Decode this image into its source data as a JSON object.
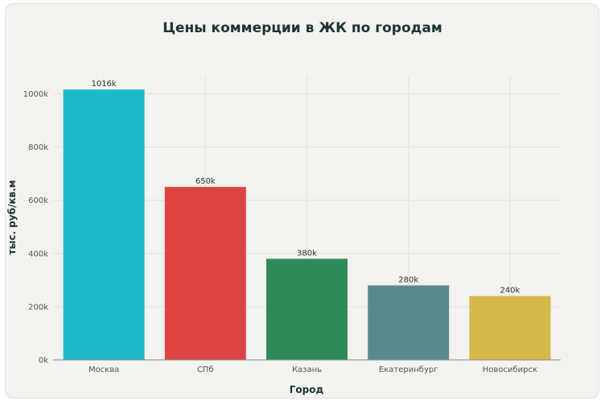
{
  "chart_data": {
    "type": "bar",
    "title": "Цены коммерции в ЖК по городам",
    "xlabel": "Город",
    "ylabel": "тыс. руб/кв.м",
    "categories": [
      "Москва",
      "СПб",
      "Казань",
      "Екатеринбург",
      "Новосибирск"
    ],
    "values": [
      1016,
      650,
      380,
      280,
      240
    ],
    "value_labels": [
      "1016k",
      "650k",
      "380k",
      "280k",
      "240k"
    ],
    "colors": [
      "#20b8cc",
      "#dc4444",
      "#2e8b57",
      "#5b8990",
      "#d4b94a"
    ],
    "yticks": [
      0,
      200,
      400,
      600,
      800,
      1000
    ],
    "ytick_labels": [
      "0k",
      "200k",
      "400k",
      "600k",
      "800k",
      "1000k"
    ],
    "ylim": [
      0,
      1065
    ],
    "grid": true
  }
}
